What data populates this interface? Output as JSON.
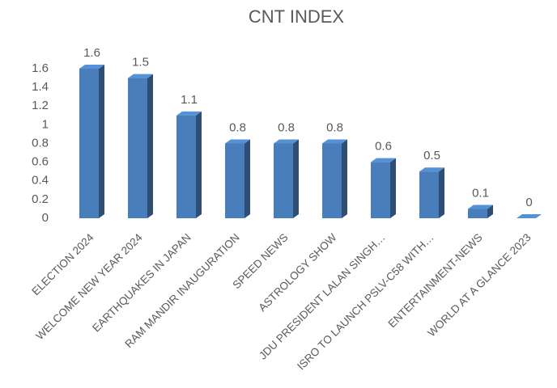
{
  "chart_data": {
    "type": "bar3d",
    "title": "CNT INDEX",
    "categories": [
      "ELECTION 2024",
      "WELCOME NEW YEAR 2024",
      "EARTHQUAKES IN JAPAN",
      "RAM MANDIR INAUGURATION",
      "SPEED NEWS",
      "ASTROLOGY SHOW",
      "JDU PRESIDENT LALAN SINGH…",
      "ISRO TO LAUNCH PSLV-C58 WITH…",
      "ENTERTAINMENT-NEWS",
      "WORLD AT A GLANCE 2023"
    ],
    "values": [
      1.6,
      1.5,
      1.1,
      0.8,
      0.8,
      0.8,
      0.6,
      0.5,
      0.1,
      0
    ],
    "color": "#4a7ebb",
    "ylim": [
      0,
      1.6
    ],
    "yticks": [
      0,
      0.2,
      0.4,
      0.6,
      0.8,
      1,
      1.2,
      1.4,
      1.6
    ],
    "grid": false
  }
}
